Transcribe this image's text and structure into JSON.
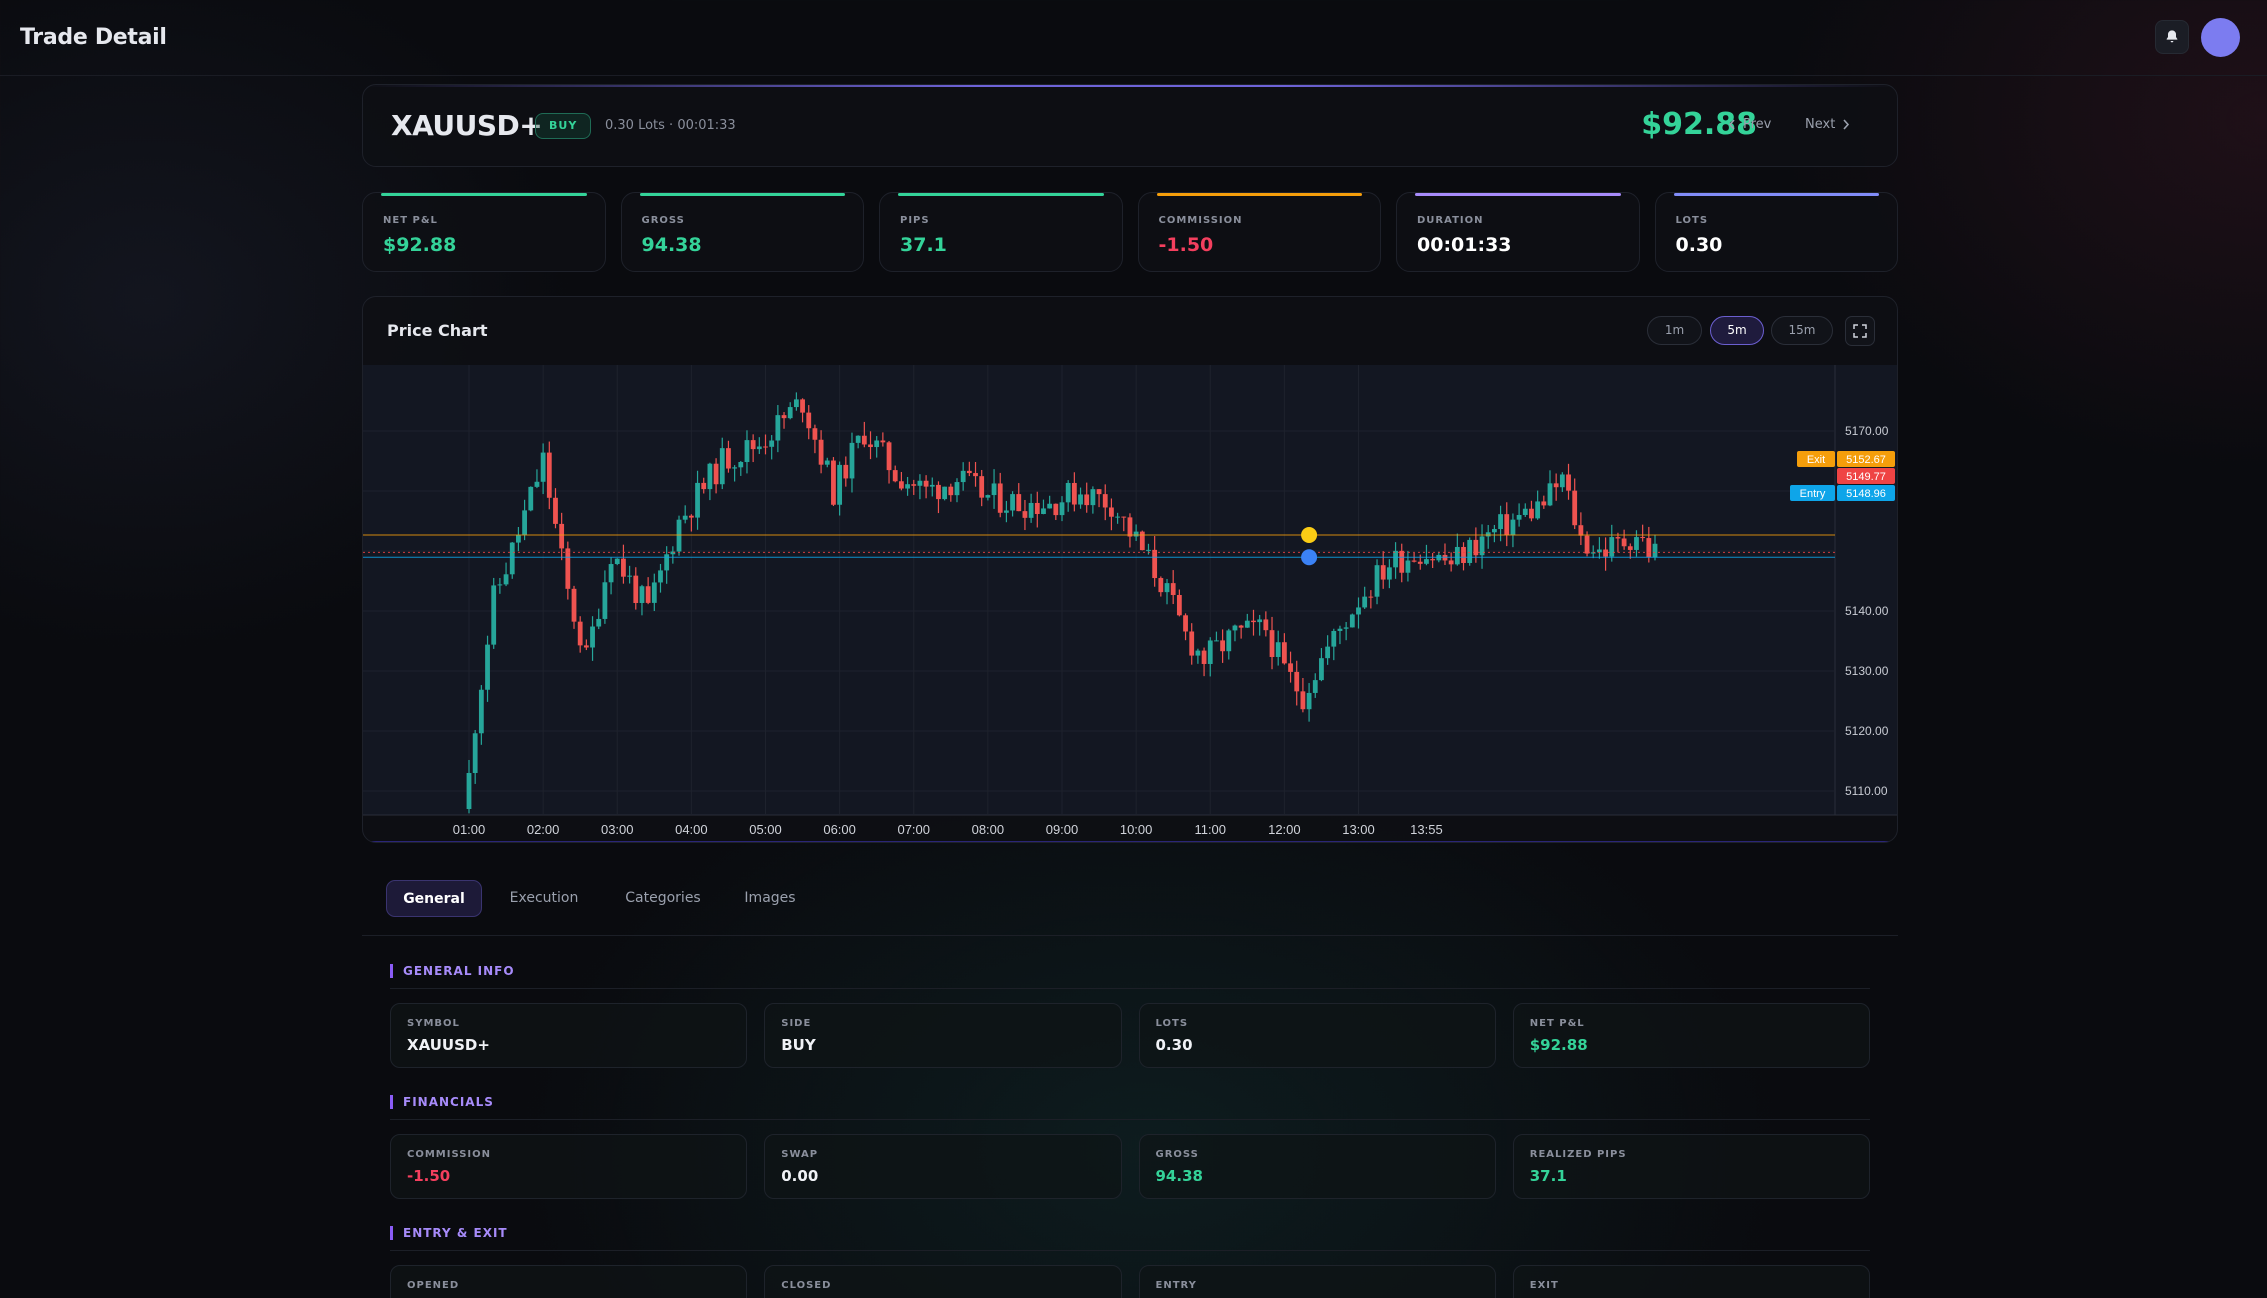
{
  "header": {
    "title": "Trade Detail"
  },
  "trade": {
    "symbol": "XAUUSD+",
    "side": "BUY",
    "meta": "0.30 Lots · 00:01:33",
    "pnl": "$92.88",
    "prev_label": "Prev",
    "next_label": "Next"
  },
  "stats": [
    {
      "label": "NET P&L",
      "value": "$92.88",
      "tone": "green",
      "accent": "#34d399"
    },
    {
      "label": "GROSS",
      "value": "94.38",
      "tone": "green",
      "accent": "#34d399"
    },
    {
      "label": "PIPS",
      "value": "37.1",
      "tone": "green",
      "accent": "#34d399"
    },
    {
      "label": "COMMISSION",
      "value": "-1.50",
      "tone": "red",
      "accent": "#f59e0b"
    },
    {
      "label": "DURATION",
      "value": "00:01:33",
      "tone": "white",
      "accent": "#a78bfa"
    },
    {
      "label": "LOTS",
      "value": "0.30",
      "tone": "white",
      "accent": "#818cf8"
    }
  ],
  "chart": {
    "title": "Price Chart",
    "timeframes": [
      "1m",
      "5m",
      "15m"
    ],
    "active_timeframe": "5m"
  },
  "chart_data": {
    "type": "candlestick",
    "title": "Price Chart",
    "y_ticks": [
      "5170.00",
      "5160.00",
      "5150.00",
      "5140.00",
      "5130.00",
      "5120.00",
      "5110.00"
    ],
    "y_labeled": [
      "5170.00",
      "5160.00",
      "5140.00",
      "5130.00",
      "5120.00",
      "5110.00"
    ],
    "ylim": [
      5106,
      5181
    ],
    "x_ticks": [
      "01:00",
      "02:00",
      "03:00",
      "04:00",
      "05:00",
      "06:00",
      "07:00",
      "08:00",
      "09:00",
      "10:00",
      "11:00",
      "12:00",
      "13:00",
      "13:55"
    ],
    "levels": [
      {
        "name": "Exit",
        "value": "5152.67",
        "color": "#f59e0b"
      },
      {
        "name": "",
        "value": "5149.77",
        "color": "#ef4444"
      },
      {
        "name": "Entry",
        "value": "5148.96",
        "color": "#0ea5e9"
      }
    ],
    "markers": [
      {
        "kind": "exit",
        "time_index": 136,
        "price": 5152.67,
        "color": "#facc15"
      },
      {
        "kind": "entry",
        "time_index": 136,
        "price": 5148.96,
        "color": "#3b82f6"
      }
    ],
    "colors": {
      "up": "#26a69a",
      "down": "#ef5350"
    },
    "path": [
      [
        0,
        5108
      ],
      [
        5,
        5142
      ],
      [
        8,
        5150
      ],
      [
        13,
        5165
      ],
      [
        17,
        5143
      ],
      [
        20,
        5132
      ],
      [
        24,
        5150
      ],
      [
        30,
        5140
      ],
      [
        35,
        5155
      ],
      [
        42,
        5165
      ],
      [
        48,
        5168
      ],
      [
        55,
        5175
      ],
      [
        60,
        5160
      ],
      [
        65,
        5170
      ],
      [
        70,
        5163
      ],
      [
        75,
        5160
      ],
      [
        80,
        5162
      ],
      [
        85,
        5159
      ],
      [
        90,
        5158
      ],
      [
        95,
        5158
      ],
      [
        100,
        5160
      ],
      [
        105,
        5158
      ],
      [
        110,
        5150
      ],
      [
        113,
        5145
      ],
      [
        117,
        5136
      ],
      [
        120,
        5132
      ],
      [
        125,
        5136
      ],
      [
        130,
        5137
      ],
      [
        133,
        5130
      ],
      [
        136,
        5126
      ],
      [
        139,
        5132
      ],
      [
        145,
        5142
      ],
      [
        150,
        5148
      ],
      [
        155,
        5150
      ],
      [
        160,
        5148
      ],
      [
        165,
        5152
      ],
      [
        170,
        5155
      ],
      [
        175,
        5158
      ],
      [
        178,
        5162
      ],
      [
        181,
        5152
      ],
      [
        184,
        5150
      ],
      [
        187,
        5151
      ],
      [
        190,
        5153
      ],
      [
        192,
        5150
      ]
    ],
    "candle_count": 193
  },
  "tabs": [
    {
      "label": "General"
    },
    {
      "label": "Execution"
    },
    {
      "label": "Categories"
    },
    {
      "label": "Images"
    }
  ],
  "sections": {
    "general": {
      "title": "GENERAL INFO",
      "fields": [
        {
          "label": "SYMBOL",
          "value": "XAUUSD+",
          "tone": "white"
        },
        {
          "label": "SIDE",
          "value": "BUY",
          "tone": "white"
        },
        {
          "label": "LOTS",
          "value": "0.30",
          "tone": "white"
        },
        {
          "label": "NET P&L",
          "value": "$92.88",
          "tone": "green"
        }
      ]
    },
    "financials": {
      "title": "FINANCIALS",
      "fields": [
        {
          "label": "COMMISSION",
          "value": "-1.50",
          "tone": "red"
        },
        {
          "label": "SWAP",
          "value": "0.00",
          "tone": "white"
        },
        {
          "label": "GROSS",
          "value": "94.38",
          "tone": "green"
        },
        {
          "label": "REALIZED PIPS",
          "value": "37.1",
          "tone": "green"
        }
      ]
    },
    "entry_exit": {
      "title": "ENTRY & EXIT",
      "fields": [
        {
          "label": "OPENED",
          "value": ""
        },
        {
          "label": "CLOSED",
          "value": ""
        },
        {
          "label": "ENTRY",
          "value": ""
        },
        {
          "label": "EXIT",
          "value": ""
        }
      ]
    }
  }
}
